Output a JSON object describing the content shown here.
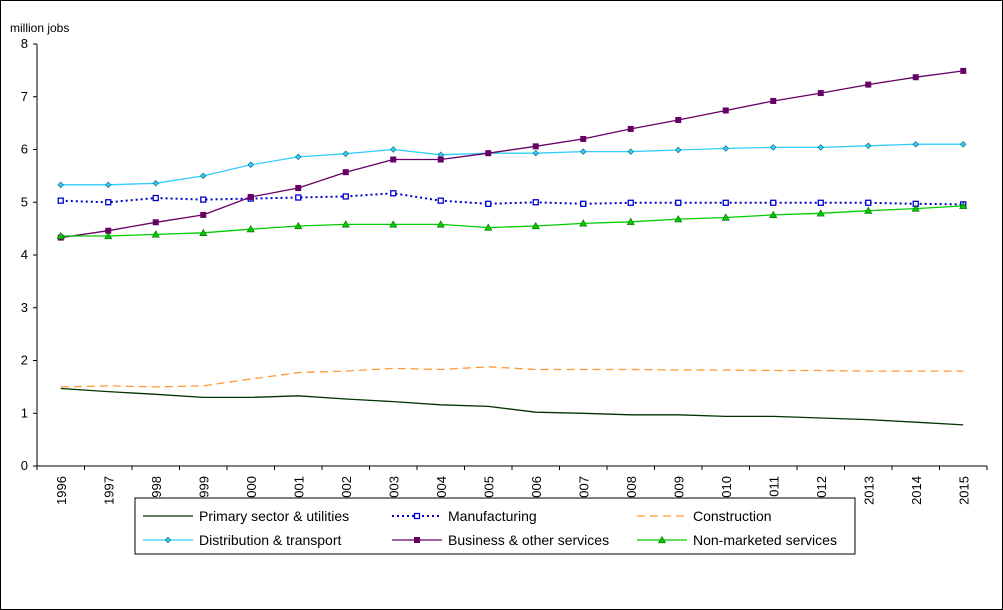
{
  "chart_data": {
    "type": "line",
    "title": "",
    "xlabel": "",
    "ylabel": "million jobs",
    "ylim": [
      0,
      8
    ],
    "yticks": [
      0,
      1,
      2,
      3,
      4,
      5,
      6,
      7,
      8
    ],
    "grid": false,
    "legend_position": "bottom",
    "x": [
      "1996",
      "1997",
      "1998",
      "1999",
      "2000",
      "2001",
      "2002",
      "2003",
      "2004",
      "2005",
      "2006",
      "2007",
      "2008",
      "2009",
      "2010",
      "2011",
      "2012",
      "2013",
      "2014",
      "2015"
    ],
    "series": [
      {
        "name": "Primary sector & utilities",
        "color": "#003300",
        "style": "solid",
        "marker": "none",
        "values": [
          1.47,
          1.41,
          1.36,
          1.3,
          1.3,
          1.33,
          1.27,
          1.22,
          1.16,
          1.13,
          1.02,
          1.0,
          0.97,
          0.97,
          0.94,
          0.94,
          0.91,
          0.88,
          0.83,
          0.78
        ]
      },
      {
        "name": "Manufacturing",
        "color": "#0000cc",
        "style": "dotted",
        "marker": "open-square",
        "values": [
          5.03,
          5.0,
          5.08,
          5.05,
          5.07,
          5.09,
          5.11,
          5.17,
          5.03,
          4.97,
          5.0,
          4.97,
          4.99,
          4.99,
          4.99,
          4.99,
          4.99,
          4.99,
          4.97,
          4.96
        ]
      },
      {
        "name": "Construction",
        "color": "#ff9933",
        "style": "dashed",
        "marker": "none",
        "values": [
          1.5,
          1.52,
          1.5,
          1.52,
          1.65,
          1.77,
          1.8,
          1.85,
          1.83,
          1.88,
          1.83,
          1.83,
          1.83,
          1.82,
          1.82,
          1.81,
          1.81,
          1.8,
          1.8,
          1.8
        ]
      },
      {
        "name": "Distribution & transport",
        "color": "#33ccff",
        "style": "solid",
        "marker": "diamond",
        "values": [
          5.33,
          5.33,
          5.36,
          5.5,
          5.71,
          5.86,
          5.92,
          6.0,
          5.9,
          5.93,
          5.93,
          5.96,
          5.96,
          5.99,
          6.02,
          6.04,
          6.04,
          6.07,
          6.1,
          6.1
        ]
      },
      {
        "name": "Business & other services",
        "color": "#660066",
        "style": "solid",
        "marker": "filled-square",
        "values": [
          4.33,
          4.46,
          4.62,
          4.76,
          5.1,
          5.27,
          5.57,
          5.81,
          5.81,
          5.93,
          6.06,
          6.2,
          6.39,
          6.56,
          6.74,
          6.92,
          7.07,
          7.23,
          7.37,
          7.49
        ]
      },
      {
        "name": "Non-marketed services",
        "color": "#00cc00",
        "style": "solid",
        "marker": "triangle",
        "values": [
          4.36,
          4.36,
          4.39,
          4.42,
          4.49,
          4.55,
          4.58,
          4.58,
          4.58,
          4.52,
          4.55,
          4.6,
          4.63,
          4.68,
          4.71,
          4.76,
          4.79,
          4.84,
          4.88,
          4.93
        ]
      }
    ]
  }
}
